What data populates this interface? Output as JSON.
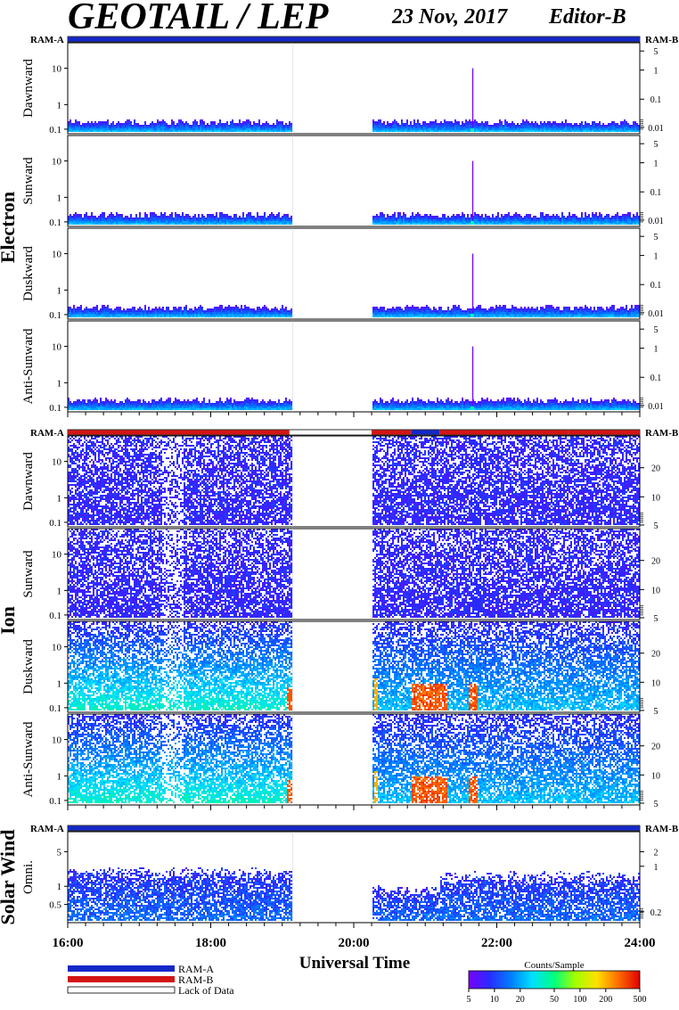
{
  "header": {
    "title": "GEOTAIL / LEP",
    "date": "23 Nov, 2017",
    "editor": "Editor-B"
  },
  "groups": [
    {
      "label": "Electron",
      "ram_left": "RAM-A",
      "ram_right": "RAM-B",
      "panels": [
        {
          "label": "Dawnward",
          "left_ticks": [
            "10",
            "1",
            "0.1"
          ],
          "right_ticks": [
            "5",
            "1",
            "0.1",
            "0.01"
          ]
        },
        {
          "label": "Sunward",
          "left_ticks": [
            "10",
            "1",
            "0.1"
          ],
          "right_ticks": [
            "5",
            "1",
            "0.1",
            "0.01"
          ]
        },
        {
          "label": "Duskward",
          "left_ticks": [
            "10",
            "1",
            "0.1"
          ],
          "right_ticks": [
            "5",
            "1",
            "0.1",
            "0.01"
          ]
        },
        {
          "label": "Anti-Sunward",
          "left_ticks": [
            "10",
            "1",
            "0.1"
          ],
          "right_ticks": [
            "5",
            "1",
            "0.1",
            "0.01"
          ]
        }
      ]
    },
    {
      "label": "Ion",
      "ram_left": "RAM-A",
      "ram_right": "RAM-B",
      "panels": [
        {
          "label": "Dawnward",
          "left_ticks": [
            "10",
            "1",
            "0.1"
          ],
          "right_ticks": [
            "20",
            "10",
            "5"
          ]
        },
        {
          "label": "Sunward",
          "left_ticks": [
            "10",
            "1",
            "0.1"
          ],
          "right_ticks": [
            "20",
            "10",
            "5"
          ]
        },
        {
          "label": "Duskward",
          "left_ticks": [
            "10",
            "1",
            "0.1"
          ],
          "right_ticks": [
            "20",
            "10",
            "5"
          ]
        },
        {
          "label": "Anti-Sunward",
          "left_ticks": [
            "10",
            "1",
            "0.1"
          ],
          "right_ticks": [
            "20",
            "10",
            "5"
          ]
        }
      ]
    },
    {
      "label": "Solar Wind",
      "ram_left": "RAM-A",
      "ram_right": "RAM-B",
      "panels": [
        {
          "label": "Omni.",
          "left_ticks": [
            "5",
            "1",
            "0.5"
          ],
          "right_ticks": [
            "2",
            "1",
            "0.2"
          ]
        }
      ]
    }
  ],
  "x_axis": {
    "label": "Universal Time",
    "ticks": [
      "16:00",
      "18:00",
      "20:00",
      "22:00",
      "24:00"
    ]
  },
  "legend": {
    "items": [
      "RAM-A",
      "RAM-B",
      "Lack of Data"
    ],
    "colorbar_title": "Counts/Sample",
    "colorbar_ticks": [
      "5",
      "10",
      "20",
      "50",
      "100",
      "200",
      "500"
    ]
  },
  "colors": {
    "ram_a": "#1428c8",
    "ram_b": "#d41414",
    "gap": "#ffffff"
  },
  "chart_data": {
    "type": "heatmap",
    "x_range_hours": [
      16,
      24
    ],
    "data_gap_hours": [
      19.15,
      20.25
    ],
    "colorbar_range": [
      5,
      500
    ],
    "electron_ram_mode": [
      {
        "from": 16,
        "to": 24,
        "mode": "RAM-A"
      }
    ],
    "ion_ram_mode": [
      {
        "from": 16,
        "to": 19.1,
        "mode": "RAM-B"
      },
      {
        "from": 20.25,
        "to": 20.8,
        "mode": "RAM-B"
      },
      {
        "from": 20.8,
        "to": 21.2,
        "mode": "RAM-A"
      },
      {
        "from": 21.2,
        "to": 23.0,
        "mode": "RAM-B"
      },
      {
        "from": 23.0,
        "to": 24,
        "mode": "RAM-B"
      }
    ],
    "solarwind_ram_mode": [
      {
        "from": 16,
        "to": 24,
        "mode": "RAM-A"
      }
    ]
  }
}
